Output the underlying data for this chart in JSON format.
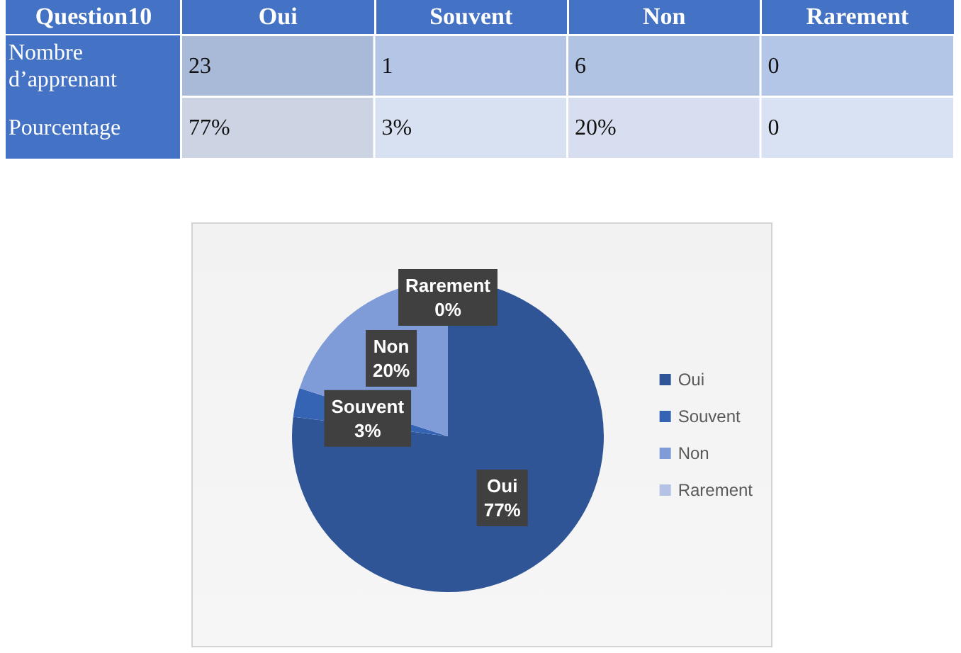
{
  "chart_data": [
    {
      "type": "heatmap",
      "title": "Question10",
      "categories": [
        "Oui",
        "Souvent",
        "Non",
        "Rarement"
      ],
      "y_categories": [
        "Nombre d’apprenant",
        "Pourcentage"
      ],
      "cells": [
        [
          23,
          1,
          6,
          0
        ],
        [
          77,
          3,
          20,
          0
        ]
      ],
      "cell_labels": [
        [
          "23",
          "1",
          "6",
          "0"
        ],
        [
          "77%",
          "3%",
          "20%",
          "0"
        ]
      ]
    },
    {
      "type": "pie",
      "categories": [
        "Oui",
        "Souvent",
        "Non",
        "Rarement"
      ],
      "values": [
        77,
        3,
        20,
        0
      ],
      "colors": [
        "#2f5597",
        "#3564b4",
        "#7f9bd8",
        "#b4c2e6"
      ],
      "value_labels": [
        "77%",
        "3%",
        "20%",
        "0%"
      ],
      "legend": "right"
    }
  ]
}
